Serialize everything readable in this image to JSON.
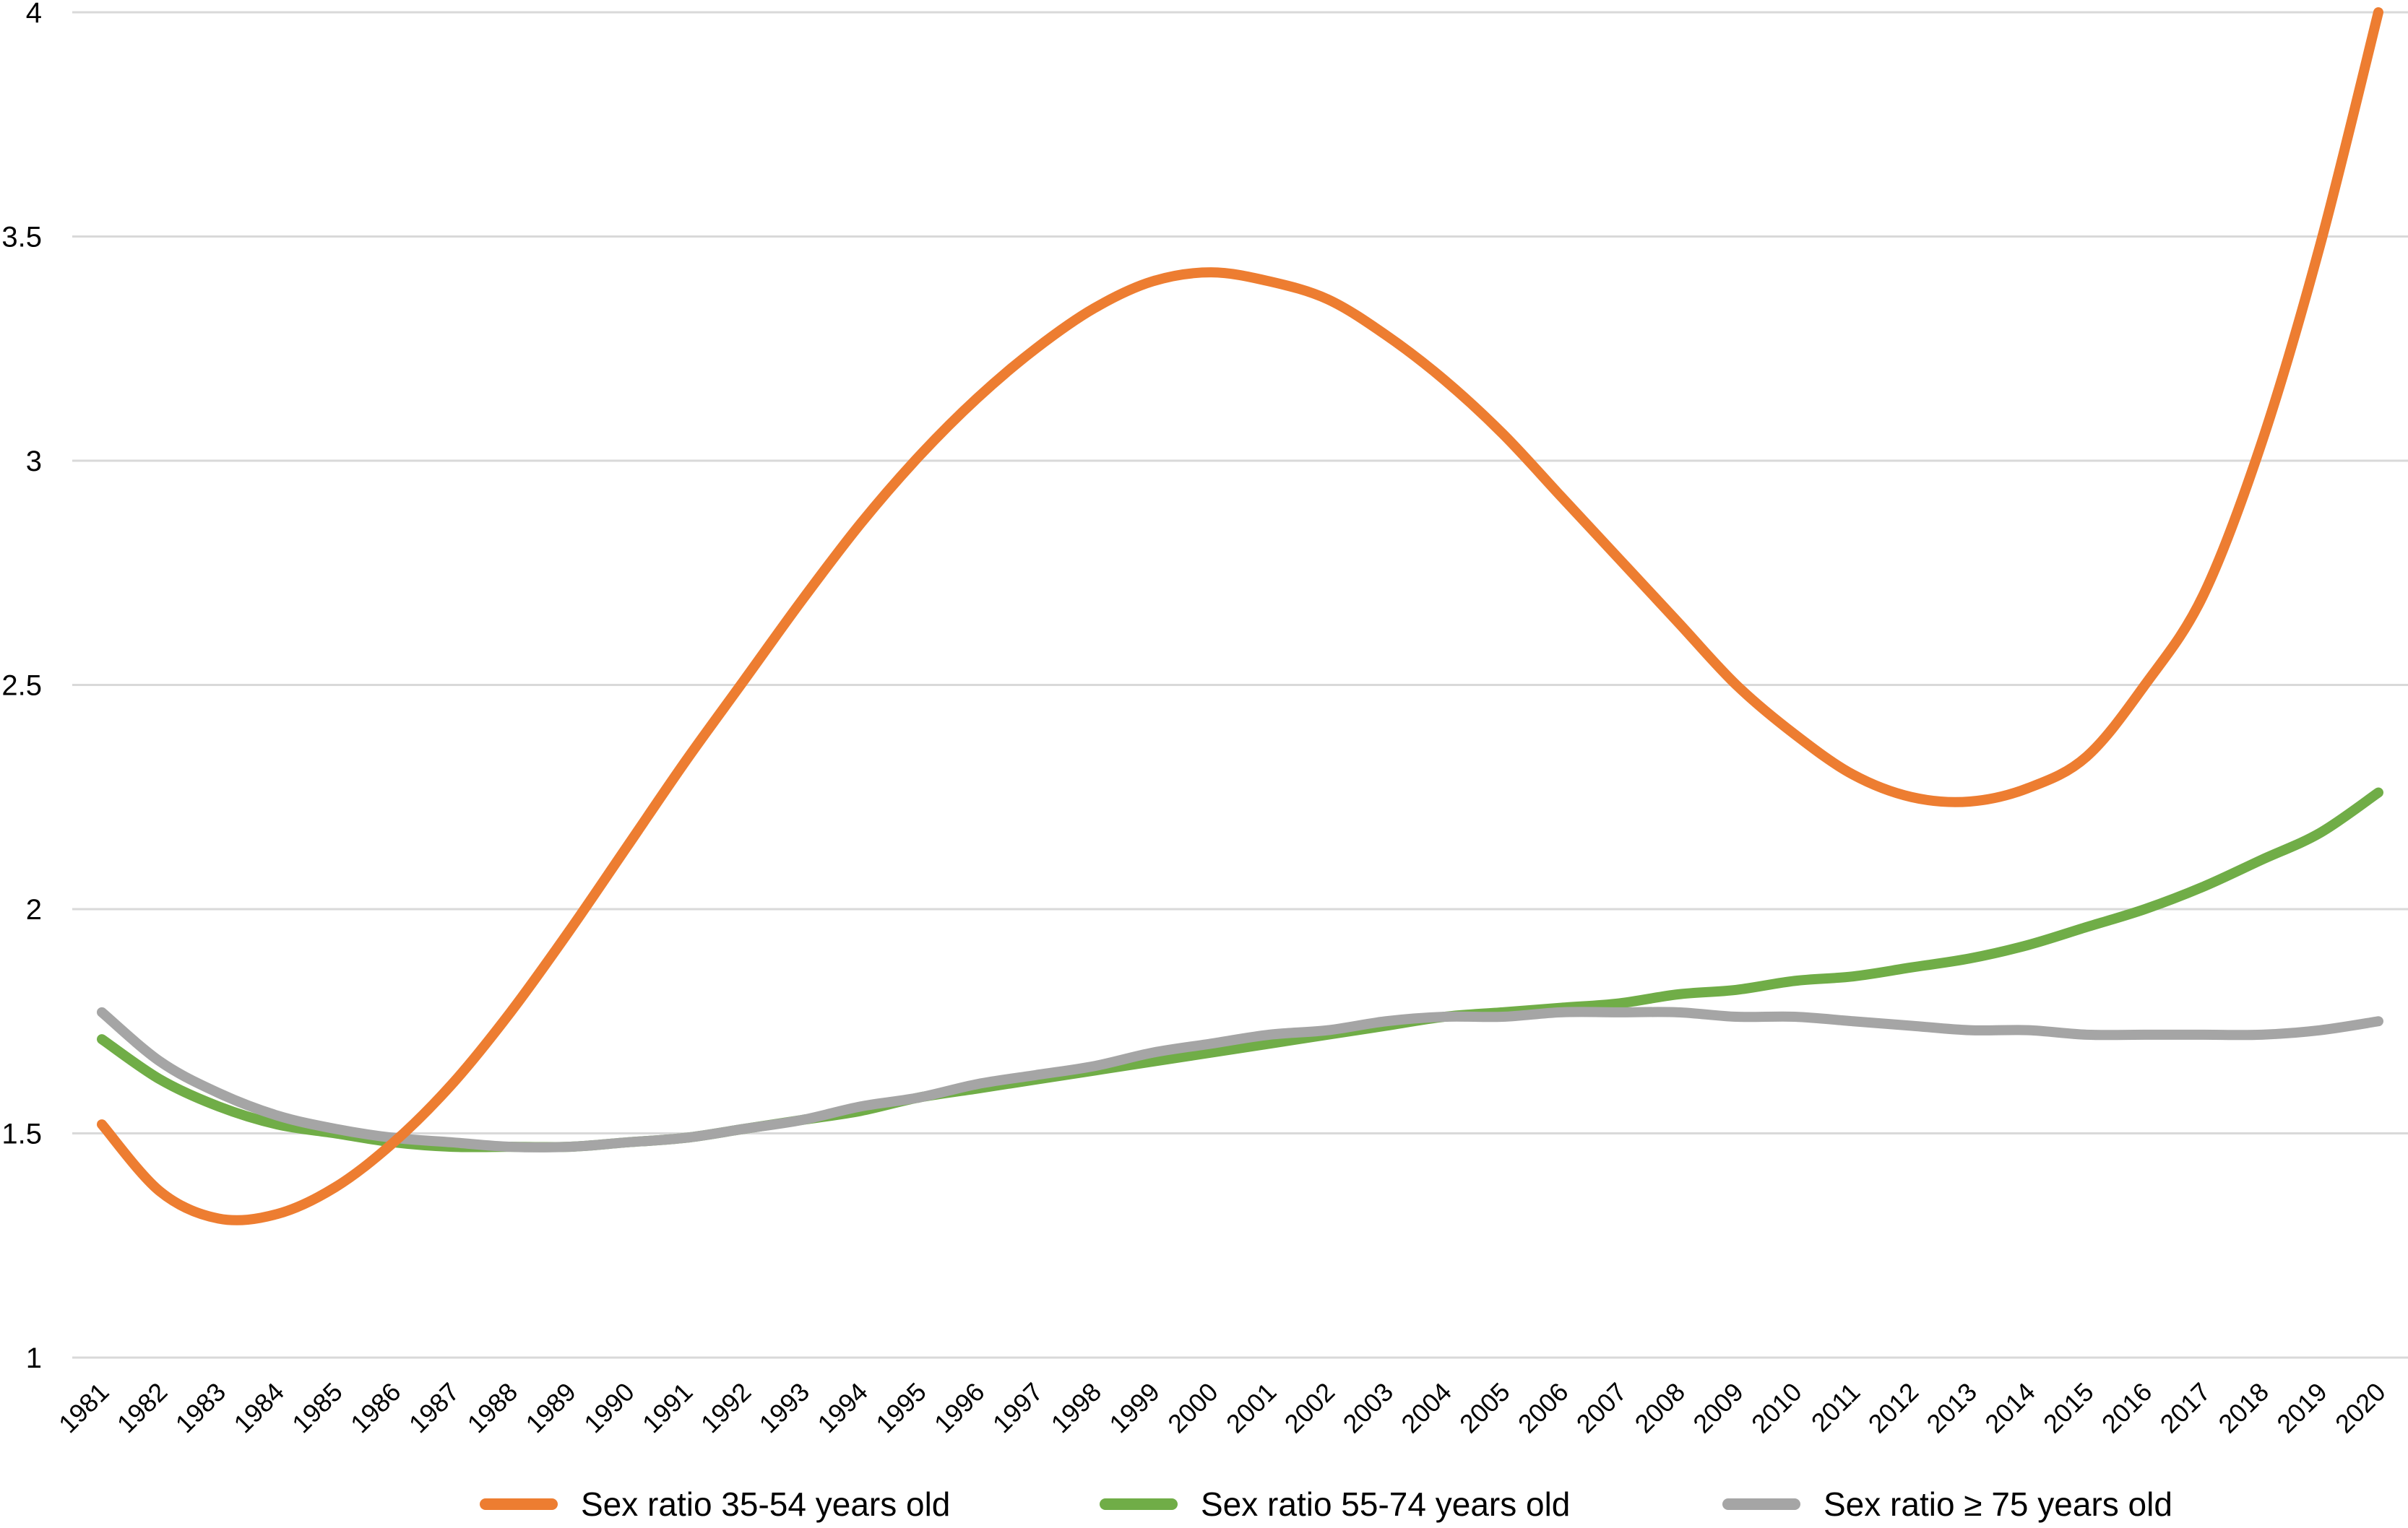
{
  "chart_data": {
    "type": "line",
    "title": "",
    "xlabel": "",
    "ylabel": "",
    "ylim": [
      1,
      4
    ],
    "yticks": [
      "1",
      "1.5",
      "2",
      "2.5",
      "3",
      "3.5",
      "4"
    ],
    "grid": true,
    "legend_position": "bottom",
    "categories": [
      "1981",
      "1982",
      "1983",
      "1984",
      "1985",
      "1986",
      "1987",
      "1988",
      "1989",
      "1990",
      "1991",
      "1992",
      "1993",
      "1994",
      "1995",
      "1996",
      "1997",
      "1998",
      "1999",
      "2000",
      "2001",
      "2002",
      "2003",
      "2004",
      "2005",
      "2006",
      "2007",
      "2008",
      "2009",
      "2010",
      "2011",
      "2012",
      "2013",
      "2014",
      "2015",
      "2016",
      "2017",
      "2018",
      "2019",
      "2020"
    ],
    "series": [
      {
        "name": "Sex ratio 35-54 years old",
        "color": "#ED7D31",
        "values": [
          1.52,
          1.37,
          1.31,
          1.32,
          1.38,
          1.48,
          1.61,
          1.77,
          1.95,
          2.14,
          2.33,
          2.51,
          2.69,
          2.86,
          3.01,
          3.14,
          3.25,
          3.34,
          3.4,
          3.42,
          3.4,
          3.36,
          3.28,
          3.18,
          3.06,
          2.92,
          2.78,
          2.64,
          2.5,
          2.39,
          2.3,
          2.25,
          2.24,
          2.27,
          2.34,
          2.5,
          2.7,
          3.04,
          3.48,
          4.0
        ]
      },
      {
        "name": "Sex ratio 55-74 years old",
        "color": "#70AD47",
        "values": [
          1.71,
          1.62,
          1.56,
          1.52,
          1.5,
          1.48,
          1.47,
          1.47,
          1.47,
          1.48,
          1.49,
          1.51,
          1.53,
          1.55,
          1.58,
          1.6,
          1.62,
          1.64,
          1.66,
          1.68,
          1.7,
          1.72,
          1.74,
          1.76,
          1.77,
          1.78,
          1.79,
          1.81,
          1.82,
          1.84,
          1.85,
          1.87,
          1.89,
          1.92,
          1.96,
          2.0,
          2.05,
          2.11,
          2.17,
          2.26
        ]
      },
      {
        "name": "Sex ratio ≥ 75 years old",
        "color": "#A5A5A5",
        "values": [
          1.77,
          1.66,
          1.59,
          1.54,
          1.51,
          1.49,
          1.48,
          1.47,
          1.47,
          1.48,
          1.49,
          1.51,
          1.53,
          1.56,
          1.58,
          1.61,
          1.63,
          1.65,
          1.68,
          1.7,
          1.72,
          1.73,
          1.75,
          1.76,
          1.76,
          1.77,
          1.77,
          1.77,
          1.76,
          1.76,
          1.75,
          1.74,
          1.73,
          1.73,
          1.72,
          1.72,
          1.72,
          1.72,
          1.73,
          1.75
        ]
      }
    ]
  }
}
